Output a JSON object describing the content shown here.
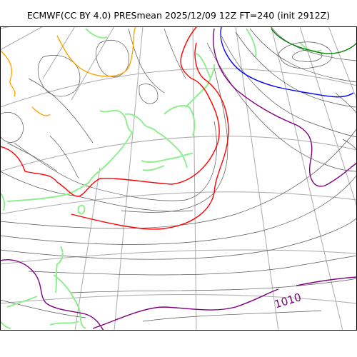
{
  "title": "ECMWF(CC BY 4.0) PRESmean 2025/12/09 12Z FT=240 (init 2912Z)",
  "contour_label": "1010",
  "colors": {
    "isobar": "#555555",
    "graticule": "#aaaaaa",
    "coastline": "#90ee90",
    "isobar_1010": "#800080",
    "isobar_1020": "#ff0000",
    "isobar_1000": "#0000ff",
    "isobar_990": "#008000",
    "isobar_1030": "#ffa500"
  }
}
